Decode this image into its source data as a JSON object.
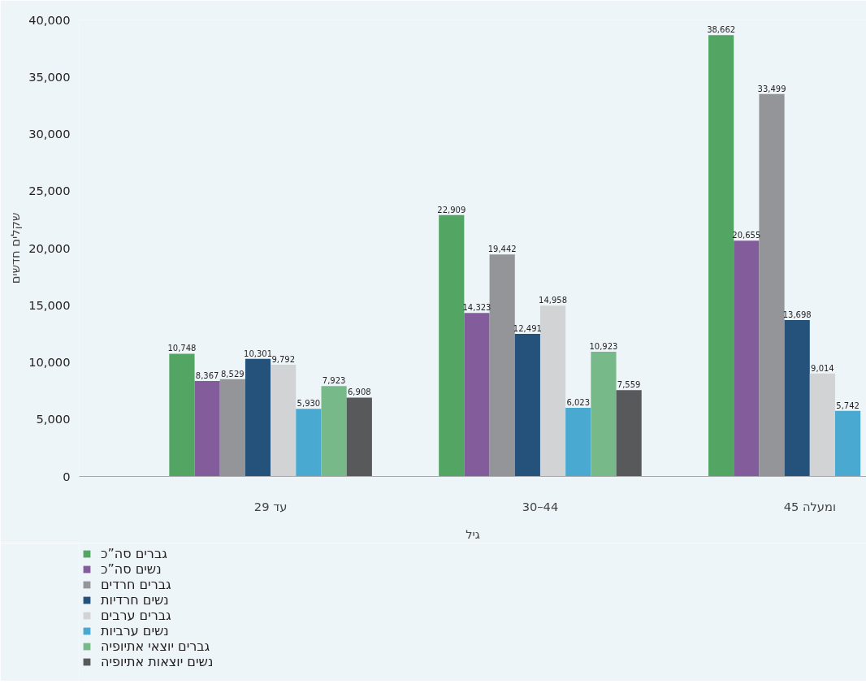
{
  "chart_data": {
    "type": "bar",
    "xlabel": "גיל",
    "ylabel": "שקלים חדשים",
    "categories": [
      "עד 29",
      "30–44",
      "45 ומעלה"
    ],
    "series": [
      {
        "name": "גברים סה”כ",
        "color": "#52a563",
        "values": [
          10748,
          22909,
          38662
        ],
        "value_labels": [
          "10,748",
          "22,909",
          "38,662"
        ]
      },
      {
        "name": "נשים סה”כ",
        "color": "#835c9b",
        "values": [
          8367,
          14323,
          20655
        ],
        "value_labels": [
          "8,367",
          "14,323",
          "20,655"
        ]
      },
      {
        "name": "גברים חרדים",
        "color": "#939598",
        "values": [
          8529,
          19442,
          33499
        ],
        "value_labels": [
          "8,529",
          "19,442",
          "33,499"
        ]
      },
      {
        "name": "נשים חרדיות",
        "color": "#25527a",
        "values": [
          10301,
          12491,
          13698
        ],
        "value_labels": [
          "10,301",
          "12,491",
          "13,698"
        ]
      },
      {
        "name": "גברים ערבים",
        "color": "#d1d3d4",
        "values": [
          9792,
          14958,
          9014
        ],
        "value_labels": [
          "9,792",
          "14,958",
          "9,014"
        ]
      },
      {
        "name": "נשים ערביות",
        "color": "#4aa9d0",
        "values": [
          5930,
          6023,
          5742
        ],
        "value_labels": [
          "5,930",
          "6,023",
          "5,742"
        ]
      },
      {
        "name": "גברים יוצאי אתיופיה",
        "color": "#78b989",
        "values": [
          7923,
          10923,
          null
        ],
        "value_labels": [
          "7,923",
          "10,923",
          null
        ]
      },
      {
        "name": "נשים יוצאות אתיופיה",
        "color": "#58595b",
        "values": [
          6908,
          7559,
          null
        ],
        "value_labels": [
          "6,908",
          "7,559",
          null
        ]
      }
    ],
    "ylim": [
      0,
      40000
    ],
    "yticks": [
      {
        "value": 0,
        "label": "0"
      },
      {
        "value": 5000,
        "label": "5,000"
      },
      {
        "value": 10000,
        "label": "10,000"
      },
      {
        "value": 15000,
        "label": "15,000"
      },
      {
        "value": 20000,
        "label": "20,000"
      },
      {
        "value": 25000,
        "label": "25,000"
      },
      {
        "value": 30000,
        "label": "30,000"
      },
      {
        "value": 35000,
        "label": "35,000"
      },
      {
        "value": 40000,
        "label": "40,000"
      }
    ],
    "grid": false,
    "legend": "bottom left"
  }
}
